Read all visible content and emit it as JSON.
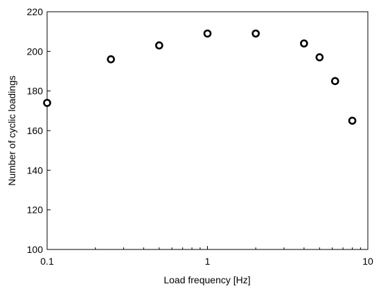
{
  "chart_data": {
    "type": "scatter",
    "title": "",
    "xlabel": "Load frequency [Hz]",
    "ylabel": "Number of cyclic loadings",
    "x_scale": "log",
    "xlim": [
      0.1,
      10
    ],
    "ylim": [
      100,
      220
    ],
    "x_ticks": [
      0.1,
      1,
      10
    ],
    "x_tick_labels": [
      "0.1",
      "1",
      "10"
    ],
    "y_ticks": [
      100,
      120,
      140,
      160,
      180,
      200,
      220
    ],
    "y_tick_labels": [
      "100",
      "120",
      "140",
      "160",
      "180",
      "200",
      "220"
    ],
    "grid": false,
    "legend": "none",
    "marker": "open-circle",
    "marker_color": "#000000",
    "points": [
      {
        "x": 0.1,
        "y": 174
      },
      {
        "x": 0.25,
        "y": 196
      },
      {
        "x": 0.5,
        "y": 203
      },
      {
        "x": 1,
        "y": 209
      },
      {
        "x": 2,
        "y": 209
      },
      {
        "x": 4,
        "y": 204
      },
      {
        "x": 5,
        "y": 197
      },
      {
        "x": 6.25,
        "y": 185
      },
      {
        "x": 8,
        "y": 165
      }
    ]
  }
}
